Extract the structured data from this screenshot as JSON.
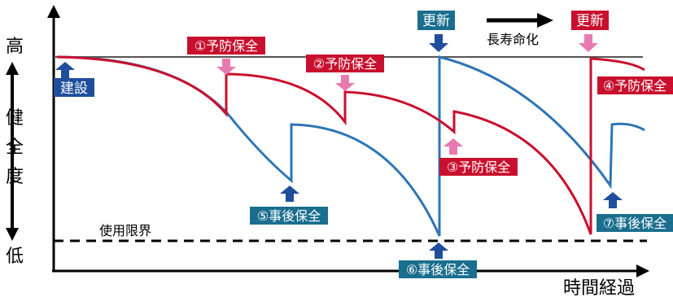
{
  "axes": {
    "y_high": "高",
    "y_low": "低",
    "y_title": [
      "健",
      "全",
      "度"
    ],
    "x_title": "時間経過"
  },
  "limit_label": "使用限界",
  "life_extension_label": "長寿命化",
  "construction_label": "建設",
  "renewal_labels": [
    "更新",
    "更新"
  ],
  "preventive_labels": [
    "①予防保全",
    "②予防保全",
    "③予防保全",
    "④予防保全"
  ],
  "corrective_labels": [
    "⑤事後保全",
    "⑥事後保全",
    "⑦事後保全"
  ],
  "colors": {
    "preventive_red": "#c8102e",
    "corrective_blue": "#2e75b6",
    "renewal_box_blue": "#1a6e8e",
    "construction_box": "#1f4e9c",
    "arrow_pink": "#e97ab0",
    "arrow_navy": "#1f4e9c"
  }
}
